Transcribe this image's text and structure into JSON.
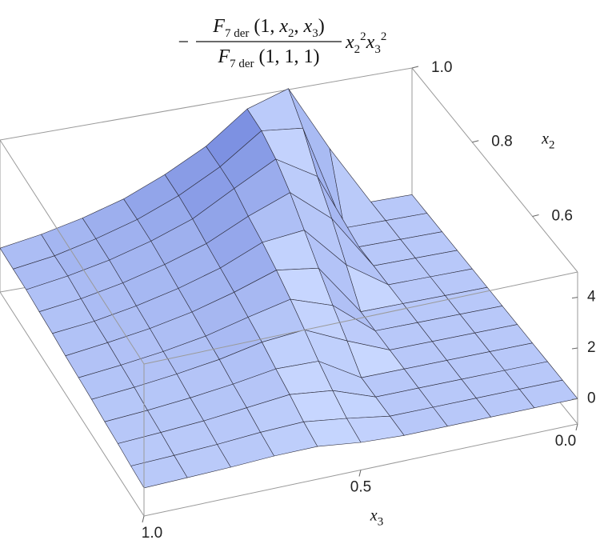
{
  "chart_data": {
    "type": "surface",
    "title": {
      "sign": "−",
      "numerator": [
        "F",
        "7 der",
        " (1, ",
        "x",
        "2",
        ", ",
        "x",
        "3",
        ")"
      ],
      "denominator": [
        "F",
        "7 der",
        " (1, 1, 1)"
      ],
      "factor": [
        "x",
        "2",
        "2",
        "x",
        "3",
        "2"
      ]
    },
    "x3": [
      0,
      0.1,
      0.2,
      0.3,
      0.4,
      0.5,
      0.6,
      0.7,
      0.8,
      0.9,
      1.0
    ],
    "x2": [
      0.45,
      0.5,
      0.55,
      0.6,
      0.65,
      0.7,
      0.75,
      0.8,
      0.85,
      0.9,
      0.95,
      1.0
    ],
    "z": [
      [
        0,
        0,
        0,
        0,
        0,
        0.09,
        0.29,
        0.28,
        0.2,
        0.15,
        0.11
      ],
      [
        0,
        0,
        0,
        0,
        0,
        0.27,
        0.49,
        0.43,
        0.31,
        0.23,
        0.17
      ],
      [
        0,
        0,
        0,
        0,
        0,
        0.6,
        0.79,
        0.62,
        0.45,
        0.34,
        0.25
      ],
      [
        0,
        0,
        0,
        0,
        0,
        0.99,
        1.03,
        0.77,
        0.57,
        0.42,
        0.31
      ],
      [
        0,
        0,
        0,
        0,
        0.69,
        1.46,
        1.31,
        0.96,
        0.72,
        0.53,
        0.39
      ],
      [
        0,
        0,
        0,
        0,
        1.33,
        1.9,
        1.52,
        1.1,
        0.82,
        0.61,
        0.44
      ],
      [
        0,
        0,
        0,
        0,
        2.04,
        2.28,
        1.73,
        1.27,
        0.94,
        0.7,
        0.5
      ],
      [
        0,
        0,
        0,
        1.1,
        2.78,
        2.61,
        1.91,
        1.42,
        1.04,
        0.75,
        0.58
      ],
      [
        0,
        0,
        0,
        2.17,
        3.5,
        2.87,
        2.1,
        1.58,
        1.16,
        0.84,
        0.63
      ],
      [
        0,
        0,
        0,
        3.08,
        4.06,
        3.2,
        2.3,
        1.72,
        1.27,
        0.94,
        0.7
      ],
      [
        0,
        0,
        0,
        4.23,
        4.42,
        3.29,
        2.44,
        1.79,
        1.32,
        0.94,
        0.71
      ],
      [
        0,
        0,
        2.39,
        5.04,
        4.52,
        3.33,
        2.5,
        1.82,
        1.35,
        0.99,
        0.73
      ]
    ],
    "x3lim": [
      0,
      1
    ],
    "x3ticks": [
      {
        "value": 0,
        "label": "0.0"
      },
      0.5,
      {
        "value": 1,
        "label": "1.0"
      }
    ],
    "x3_label": [
      "x",
      "3"
    ],
    "x2lim": [
      0.45,
      1
    ],
    "x2ticks": [
      0.6,
      0.8,
      {
        "value": 1,
        "label": "1.0"
      }
    ],
    "x2_label": [
      "x",
      "2"
    ],
    "zlim": [
      -1,
      5
    ],
    "zticks": [
      0,
      2,
      4
    ]
  }
}
